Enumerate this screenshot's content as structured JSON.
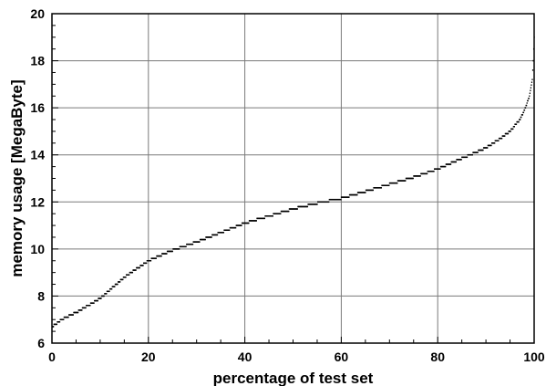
{
  "chart_data": {
    "type": "scatter",
    "title": "",
    "xlabel": "percentage of test set",
    "ylabel": "memory usage [MegaByte]",
    "xlim": [
      0,
      100
    ],
    "ylim": [
      6,
      20
    ],
    "grid": true,
    "xticks": [
      "0",
      "20",
      "40",
      "60",
      "80",
      "100"
    ],
    "yticks": [
      "6",
      "8",
      "10",
      "12",
      "14",
      "16",
      "18",
      "20"
    ],
    "point_color": "#000000",
    "curve_anchors": [
      {
        "x": 0,
        "y": 6.7
      },
      {
        "x": 2,
        "y": 7.0
      },
      {
        "x": 5,
        "y": 7.3
      },
      {
        "x": 10,
        "y": 7.9
      },
      {
        "x": 15,
        "y": 8.8
      },
      {
        "x": 20,
        "y": 9.5
      },
      {
        "x": 25,
        "y": 9.95
      },
      {
        "x": 30,
        "y": 10.3
      },
      {
        "x": 35,
        "y": 10.7
      },
      {
        "x": 40,
        "y": 11.1
      },
      {
        "x": 45,
        "y": 11.4
      },
      {
        "x": 50,
        "y": 11.7
      },
      {
        "x": 55,
        "y": 11.95
      },
      {
        "x": 60,
        "y": 12.15
      },
      {
        "x": 65,
        "y": 12.45
      },
      {
        "x": 70,
        "y": 12.75
      },
      {
        "x": 75,
        "y": 13.05
      },
      {
        "x": 80,
        "y": 13.4
      },
      {
        "x": 85,
        "y": 13.85
      },
      {
        "x": 90,
        "y": 14.3
      },
      {
        "x": 93,
        "y": 14.7
      },
      {
        "x": 95,
        "y": 15.0
      },
      {
        "x": 97,
        "y": 15.5
      },
      {
        "x": 98,
        "y": 15.9
      },
      {
        "x": 99,
        "y": 16.5
      },
      {
        "x": 99.6,
        "y": 17.2
      },
      {
        "x": 99.8,
        "y": 18.0
      },
      {
        "x": 100,
        "y": 19.0
      }
    ]
  }
}
